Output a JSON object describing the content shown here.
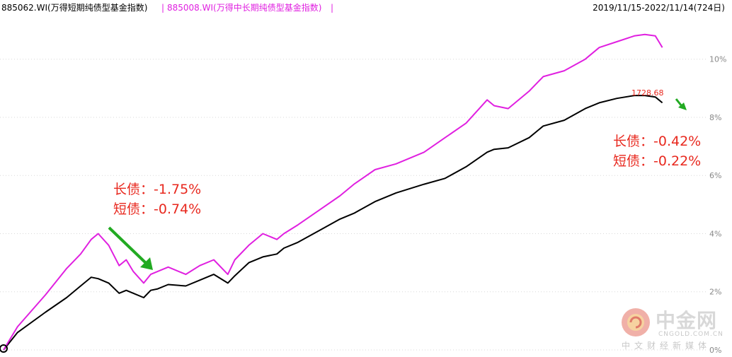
{
  "header": {
    "series1_label": "885062.WI(万得短期纯债型基金指数)",
    "separator": "|",
    "series2_label": "885008.WI(万得中长期纯债型基金指数)",
    "date_range": "2019/11/15-2022/11/14(724日)"
  },
  "annotations": {
    "left_line1": "长债：-1.75%",
    "left_line2": "短债：-0.74%",
    "right_line1": "长债：-0.42%",
    "right_line2": "短债：-0.22%",
    "last_value": "1728.68"
  },
  "watermark": {
    "title": "中金网",
    "domain": "CNGOLD.COM.CN",
    "tagline": "中文财经新媒体"
  },
  "colors": {
    "series1": "#000000",
    "series2": "#e020e0",
    "annotation": "#e8281e",
    "arrow": "#22aa22",
    "grid": "#d8d8d8",
    "axis_text": "#888888"
  },
  "chart_data": {
    "type": "line",
    "x_start": "2019/11/15",
    "x_end": "2022/11/14",
    "y_axis": {
      "position": "right",
      "ticks": [
        "0%",
        "2%",
        "4%",
        "6%",
        "8%",
        "10%"
      ],
      "ylim": [
        0,
        11.5
      ],
      "unit": "%"
    },
    "grid": "horizontal dotted",
    "series": [
      {
        "name": "885062.WI(万得短期纯债型基金指数)",
        "color": "#000000",
        "x": [
          0,
          0.02,
          0.06,
          0.09,
          0.11,
          0.125,
          0.135,
          0.15,
          0.165,
          0.175,
          0.185,
          0.2,
          0.21,
          0.22,
          0.235,
          0.26,
          0.28,
          0.3,
          0.32,
          0.33,
          0.35,
          0.37,
          0.39,
          0.4,
          0.42,
          0.45,
          0.48,
          0.5,
          0.53,
          0.56,
          0.6,
          0.63,
          0.66,
          0.69,
          0.7,
          0.72,
          0.75,
          0.77,
          0.8,
          0.83,
          0.85,
          0.875,
          0.9,
          0.915,
          0.93,
          0.935,
          0.94
        ],
        "values": [
          0.0,
          0.6,
          1.3,
          1.8,
          2.2,
          2.5,
          2.45,
          2.3,
          1.95,
          2.05,
          1.95,
          1.8,
          2.05,
          2.1,
          2.25,
          2.2,
          2.4,
          2.6,
          2.3,
          2.55,
          3.0,
          3.2,
          3.3,
          3.5,
          3.7,
          4.1,
          4.5,
          4.7,
          5.1,
          5.4,
          5.7,
          5.9,
          6.3,
          6.8,
          6.9,
          6.95,
          7.3,
          7.7,
          7.9,
          8.3,
          8.5,
          8.65,
          8.75,
          8.75,
          8.7,
          8.6,
          8.5
        ]
      },
      {
        "name": "885008.WI(万得中长期纯债型基金指数)",
        "color": "#e020e0",
        "x": [
          0,
          0.02,
          0.06,
          0.09,
          0.11,
          0.125,
          0.135,
          0.15,
          0.165,
          0.175,
          0.185,
          0.2,
          0.21,
          0.22,
          0.235,
          0.26,
          0.28,
          0.3,
          0.32,
          0.33,
          0.35,
          0.37,
          0.39,
          0.4,
          0.42,
          0.45,
          0.48,
          0.5,
          0.53,
          0.56,
          0.6,
          0.63,
          0.66,
          0.69,
          0.7,
          0.72,
          0.75,
          0.77,
          0.8,
          0.83,
          0.85,
          0.875,
          0.9,
          0.915,
          0.93,
          0.935,
          0.94
        ],
        "values": [
          0.0,
          0.8,
          1.9,
          2.8,
          3.3,
          3.8,
          4.0,
          3.6,
          2.9,
          3.1,
          2.7,
          2.3,
          2.6,
          2.7,
          2.85,
          2.6,
          2.9,
          3.1,
          2.6,
          3.1,
          3.6,
          4.0,
          3.8,
          4.0,
          4.3,
          4.8,
          5.3,
          5.7,
          6.2,
          6.4,
          6.8,
          7.3,
          7.8,
          8.6,
          8.4,
          8.3,
          8.9,
          9.4,
          9.6,
          10.0,
          10.4,
          10.6,
          10.8,
          10.85,
          10.8,
          10.6,
          10.4
        ]
      }
    ]
  }
}
